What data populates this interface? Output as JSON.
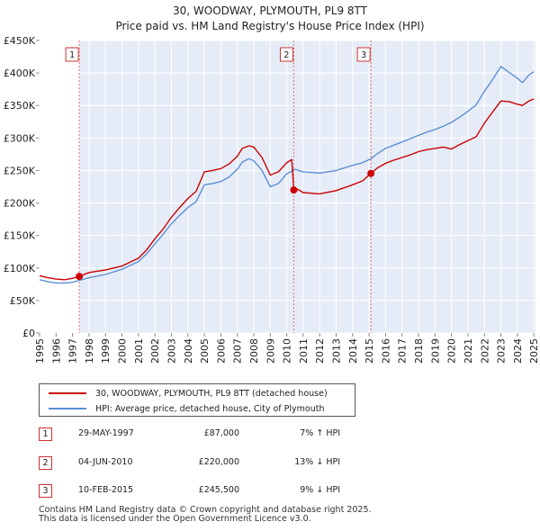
{
  "title": {
    "line1": "30, WOODWAY, PLYMOUTH, PL9 8TT",
    "line2": "Price paid vs. HM Land Registry's House Price Index (HPI)"
  },
  "chart_data": {
    "type": "line",
    "title": "30, WOODWAY, PLYMOUTH, PL9 8TT — Price paid vs. HM Land Registry's House Price Index (HPI)",
    "xlabel": "",
    "ylabel": "",
    "xlim": [
      1995,
      2025.1
    ],
    "ylim": [
      0,
      450000
    ],
    "x_ticks": [
      "1995",
      "1996",
      "1997",
      "1998",
      "1999",
      "2000",
      "2001",
      "2002",
      "2003",
      "2004",
      "2005",
      "2006",
      "2007",
      "2008",
      "2009",
      "2010",
      "2011",
      "2012",
      "2013",
      "2014",
      "2015",
      "2016",
      "2017",
      "2018",
      "2019",
      "2020",
      "2021",
      "2022",
      "2023",
      "2024",
      "2025"
    ],
    "y_ticks": [
      {
        "value": 0,
        "label": "£0"
      },
      {
        "value": 50000,
        "label": "£50K"
      },
      {
        "value": 100000,
        "label": "£100K"
      },
      {
        "value": 150000,
        "label": "£150K"
      },
      {
        "value": 200000,
        "label": "£200K"
      },
      {
        "value": 250000,
        "label": "£250K"
      },
      {
        "value": 300000,
        "label": "£300K"
      },
      {
        "value": 350000,
        "label": "£350K"
      },
      {
        "value": 400000,
        "label": "£400K"
      },
      {
        "value": 450000,
        "label": "£450K"
      }
    ],
    "grid": true,
    "shaded_region_after_first_sale": true,
    "series": [
      {
        "name": "30, WOODWAY, PLYMOUTH, PL9 8TT (detached house)",
        "color": "#cc0000",
        "x": [
          1995.0,
          1995.5,
          1996.0,
          1996.5,
          1997.0,
          1997.41,
          1998.0,
          1999.0,
          2000.0,
          2001.0,
          2001.5,
          2002.0,
          2002.5,
          2003.0,
          2003.5,
          2004.0,
          2004.5,
          2005.0,
          2005.5,
          2006.0,
          2006.5,
          2007.0,
          2007.3,
          2007.7,
          2008.0,
          2008.5,
          2009.0,
          2009.5,
          2010.0,
          2010.3,
          2010.43,
          2010.6,
          2011.0,
          2012.0,
          2013.0,
          2014.0,
          2014.6,
          2015.11,
          2015.5,
          2016.0,
          2016.5,
          2017.0,
          2017.5,
          2018.0,
          2018.5,
          2019.0,
          2019.5,
          2020.0,
          2020.5,
          2021.0,
          2021.5,
          2022.0,
          2022.5,
          2023.0,
          2023.5,
          2024.0,
          2024.3,
          2024.7,
          2025.0
        ],
        "values": [
          88000,
          85000,
          83000,
          82000,
          84000,
          87000,
          93000,
          97000,
          103000,
          115000,
          128000,
          145000,
          160000,
          178000,
          193000,
          207000,
          218000,
          248000,
          250000,
          253000,
          260000,
          272000,
          284000,
          288000,
          286000,
          270000,
          243000,
          248000,
          262000,
          267000,
          220000,
          222000,
          216000,
          214000,
          219000,
          228000,
          234000,
          245500,
          254000,
          261000,
          266000,
          270000,
          274000,
          279000,
          282000,
          284000,
          286000,
          283000,
          290000,
          296000,
          302000,
          323000,
          340000,
          357000,
          356000,
          352000,
          350000,
          357000,
          360000
        ]
      },
      {
        "name": "HPI: Average price, detached house, City of Plymouth",
        "color": "#5b8fd4",
        "x": [
          1995.0,
          1995.5,
          1996.0,
          1996.5,
          1997.0,
          1997.41,
          1998.0,
          1999.0,
          2000.0,
          2001.0,
          2001.5,
          2002.0,
          2002.5,
          2003.0,
          2003.5,
          2004.0,
          2004.5,
          2005.0,
          2005.5,
          2006.0,
          2006.5,
          2007.0,
          2007.3,
          2007.7,
          2008.0,
          2008.5,
          2009.0,
          2009.5,
          2010.0,
          2010.3,
          2010.43,
          2010.6,
          2011.0,
          2012.0,
          2013.0,
          2014.0,
          2014.6,
          2015.11,
          2015.5,
          2016.0,
          2016.5,
          2017.0,
          2017.5,
          2018.0,
          2018.5,
          2019.0,
          2019.5,
          2020.0,
          2020.5,
          2021.0,
          2021.5,
          2022.0,
          2022.5,
          2023.0,
          2023.5,
          2024.0,
          2024.3,
          2024.7,
          2025.0
        ],
        "values": [
          82000,
          79000,
          77000,
          77000,
          78000,
          81000,
          85000,
          90000,
          98000,
          110000,
          122000,
          137000,
          152000,
          168000,
          181000,
          193000,
          202000,
          228000,
          230000,
          233000,
          240000,
          252000,
          263000,
          268000,
          265000,
          250000,
          225000,
          230000,
          245000,
          249000,
          252000,
          251000,
          248000,
          246000,
          250000,
          258000,
          262000,
          268000,
          276000,
          284000,
          289000,
          294000,
          299000,
          304000,
          309000,
          313000,
          318000,
          324000,
          332000,
          341000,
          351000,
          372000,
          390000,
          410000,
          401000,
          392000,
          385000,
          397000,
          402000
        ]
      }
    ],
    "sales": [
      {
        "label": "1",
        "x": 1997.41,
        "price": 87000,
        "date": "29-MAY-1997",
        "price_text": "£87,000",
        "hpi_text": "7% ↑ HPI"
      },
      {
        "label": "2",
        "x": 2010.43,
        "price": 220000,
        "date": "04-JUN-2010",
        "price_text": "£220,000",
        "hpi_text": "13% ↓ HPI"
      },
      {
        "label": "3",
        "x": 2015.11,
        "price": 245500,
        "date": "10-FEB-2015",
        "price_text": "£245,500",
        "hpi_text": "9% ↓ HPI"
      }
    ]
  },
  "legend": {
    "property_label": "30, WOODWAY, PLYMOUTH, PL9 8TT (detached house)",
    "hpi_label": "HPI: Average price, detached house, City of Plymouth",
    "property_color": "#cc0000",
    "hpi_color": "#5b8fd4"
  },
  "footer": {
    "line1": "Contains HM Land Registry data © Crown copyright and database right 2025.",
    "line2": "This data is licensed under the Open Government Licence v3.0."
  }
}
